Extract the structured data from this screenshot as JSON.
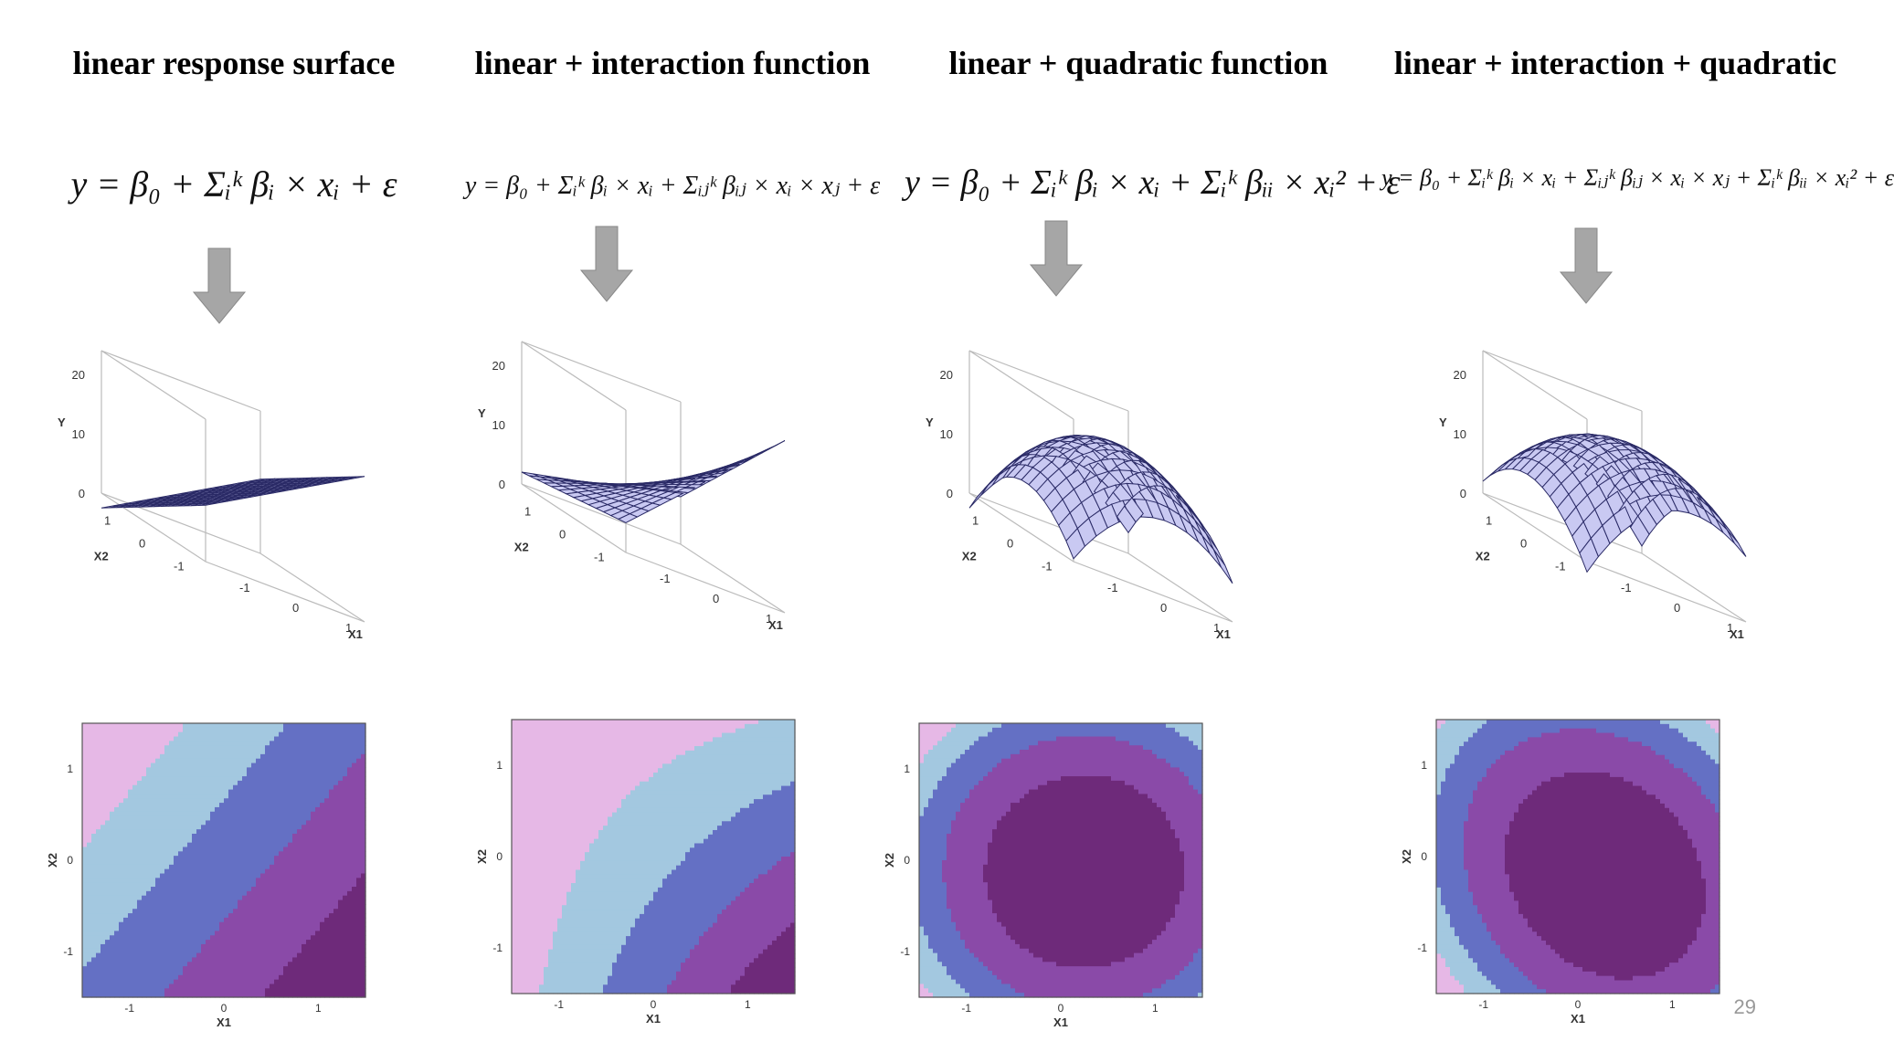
{
  "panels": [
    {
      "title": "linear response surface",
      "formula": "y = β₀ + Σᵢᵏ βᵢ × xᵢ + ε",
      "surface": {
        "type": "linear",
        "yticks": [
          "0",
          "10",
          "20"
        ],
        "ylabel": "Y",
        "x2label": "X2",
        "x1label": "X1",
        "x2ticks": [
          "1",
          "0",
          "-1"
        ],
        "x1ticks": [
          "-1",
          "0",
          "1"
        ]
      },
      "contour": {
        "x1label": "X1",
        "x2label": "X2",
        "xticks": [
          "-1",
          "0",
          "1"
        ],
        "yticks": [
          "1",
          "0",
          "-1"
        ]
      }
    },
    {
      "title": "linear + interaction function",
      "formula": "y = β₀ + Σᵢᵏ βᵢ × xᵢ + Σᵢⱼᵏ βᵢⱼ × xᵢ × xⱼ + ε",
      "surface": {
        "type": "interaction",
        "yticks": [
          "0",
          "10",
          "20"
        ],
        "ylabel": "Y",
        "x2label": "X2",
        "x1label": "X1",
        "x2ticks": [
          "1",
          "0",
          "-1"
        ],
        "x1ticks": [
          "-1",
          "0",
          "1"
        ]
      },
      "contour": {
        "x1label": "X1",
        "x2label": "X2",
        "xticks": [
          "-1",
          "0",
          "1"
        ],
        "yticks": [
          "1",
          "0",
          "-1"
        ]
      }
    },
    {
      "title": "linear + quadratic function",
      "formula": "y = β₀ + Σᵢᵏ βᵢ × xᵢ + Σᵢᵏ βᵢᵢ × xᵢ² + ε",
      "surface": {
        "type": "quadratic",
        "yticks": [
          "0",
          "10",
          "20"
        ],
        "ylabel": "Y",
        "x2label": "X2",
        "x1label": "X1",
        "x2ticks": [
          "1",
          "0",
          "-1"
        ],
        "x1ticks": [
          "-1",
          "0",
          "1"
        ]
      },
      "contour": {
        "x1label": "X1",
        "x2label": "X2",
        "xticks": [
          "-1",
          "0",
          "1"
        ],
        "yticks": [
          "1",
          "0",
          "-1"
        ]
      }
    },
    {
      "title": "linear + interaction + quadratic",
      "formula": "y = β₀ + Σᵢᵏ βᵢ × xᵢ + Σᵢⱼᵏ βᵢⱼ × xᵢ × xⱼ + Σᵢᵏ βᵢᵢ × xᵢ² + ε",
      "surface": {
        "type": "full",
        "yticks": [
          "0",
          "10",
          "20"
        ],
        "ylabel": "Y",
        "x2label": "X2",
        "x1label": "X1",
        "x2ticks": [
          "1",
          "0",
          "-1"
        ],
        "x1ticks": [
          "-1",
          "0",
          "1"
        ]
      },
      "contour": {
        "x1label": "X1",
        "x2label": "X2",
        "xticks": [
          "-1",
          "0",
          "1"
        ],
        "yticks": [
          "1",
          "0",
          "-1"
        ]
      }
    }
  ],
  "page_number": "29",
  "colors": {
    "surface_fill": "#c9c9f2",
    "mesh_line": "#2a2a66",
    "arrow_fill": "#a6a6a6",
    "contour_levels": [
      "#e6b8e6",
      "#a3c8e0",
      "#6470c4",
      "#8a4aa8",
      "#6e2a7a"
    ]
  }
}
